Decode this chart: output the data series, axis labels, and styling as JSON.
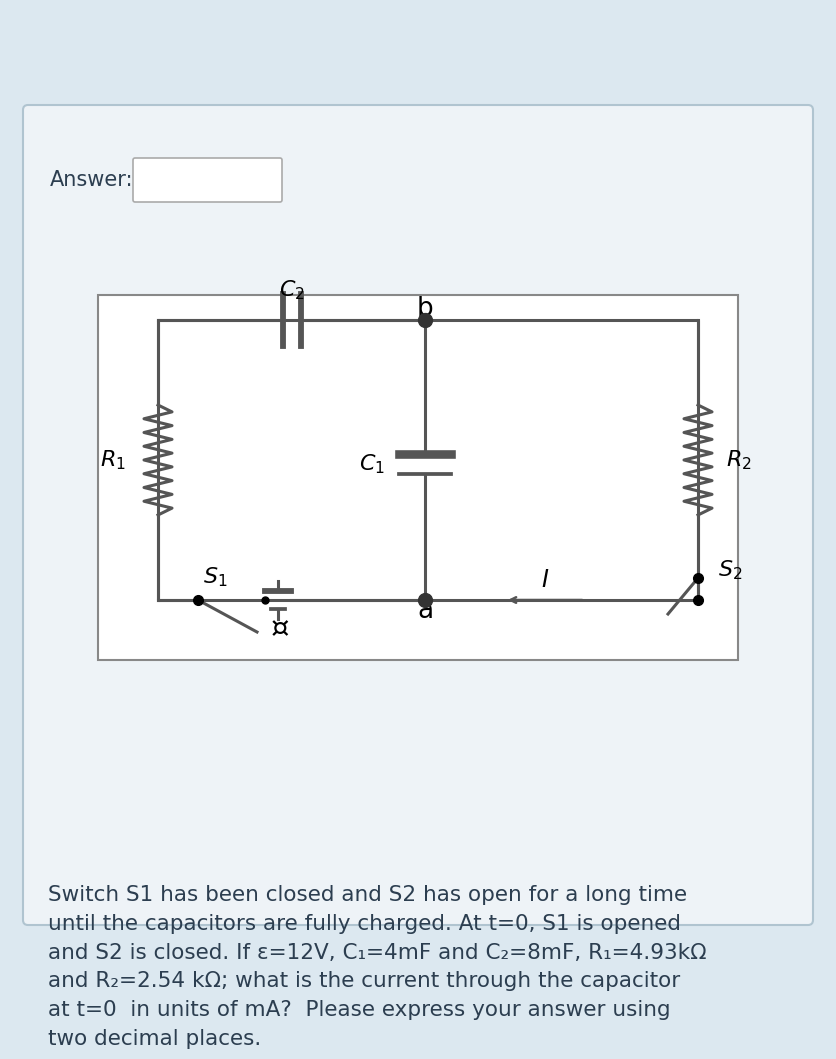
{
  "bg_color": "#dce8f0",
  "panel_bg": "#eef3f7",
  "circuit_bg": "#ffffff",
  "text_color": "#2c3e50",
  "line_color": "#555555",
  "title_text": "Switch S1 has been closed and S2 has open for a long time\nuntil the capacitors are fully charged. At t=0, S1 is opened\nand S2 is closed. If ε=12V, C₁=4mF and C₂=8mF, R₁=4.93kΩ\nand R₂=2.54 kΩ; what is the current through the capacitor\nat t=0  in units of mA?  Please express your answer using\ntwo decimal places.",
  "answer_label": "Answer:",
  "font_size_title": 15.5,
  "font_size_labels": 13,
  "resistor_half": 55,
  "resistor_zigzag": 14,
  "nz": 8
}
